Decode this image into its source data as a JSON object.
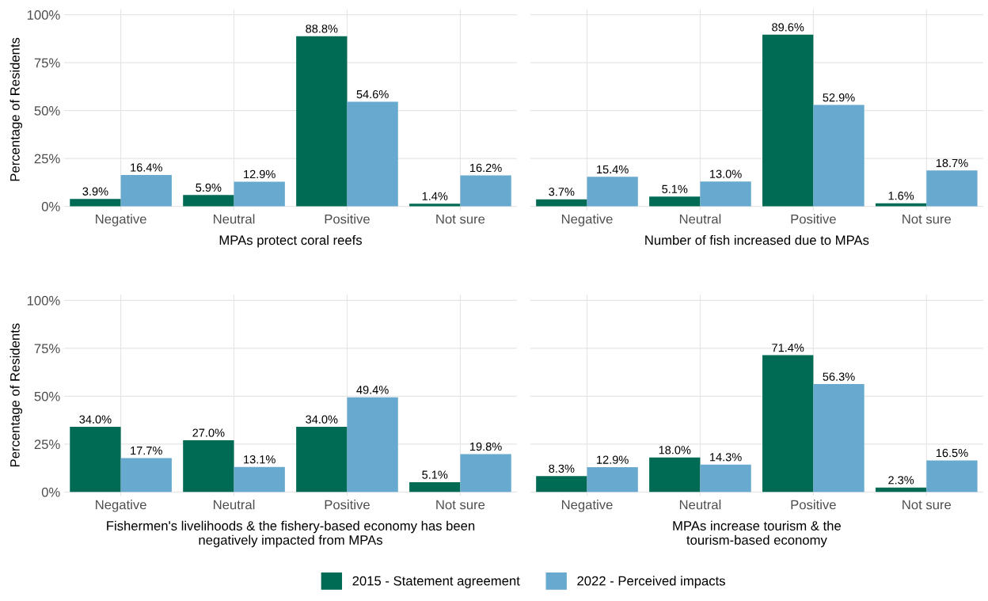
{
  "chart_data": [
    {
      "type": "bar",
      "xlabel": "MPAs protect coral reefs",
      "ylabel": "Percentage of Residents",
      "categories": [
        "Negative",
        "Neutral",
        "Positive",
        "Not sure"
      ],
      "ylim": [
        -2,
        103
      ],
      "yticks": [
        {
          "value": 0,
          "label": "0%"
        },
        {
          "value": 25,
          "label": "25%"
        },
        {
          "value": 50,
          "label": "50%"
        },
        {
          "value": 75,
          "label": "75%"
        },
        {
          "value": 100,
          "label": "100%"
        }
      ],
      "grid": true,
      "legend": "bottom",
      "series": [
        {
          "name": "2015 - Statement agreement",
          "color": "#006b54",
          "values": [
            3.9,
            5.9,
            88.8,
            1.4
          ],
          "value_labels": [
            "3.9%",
            "5.9%",
            "88.8%",
            "1.4%"
          ]
        },
        {
          "name": "2022 - Perceived impacts",
          "color": "#67a9cf",
          "values": [
            16.4,
            12.9,
            54.6,
            16.2
          ],
          "value_labels": [
            "16.4%",
            "12.9%",
            "54.6%",
            "16.2%"
          ]
        }
      ]
    },
    {
      "type": "bar",
      "xlabel": "Number of fish increased due to MPAs",
      "categories": [
        "Negative",
        "Neutral",
        "Positive",
        "Not sure"
      ],
      "ylim": [
        -2,
        103
      ],
      "tick_labels": "x",
      "grid": true,
      "legend": "bottom",
      "series": [
        {
          "name": "2015 - Statement agreement",
          "color": "#006b54",
          "values": [
            3.7,
            5.1,
            89.6,
            1.6
          ],
          "value_labels": [
            "3.7%",
            "5.1%",
            "89.6%",
            "1.6%"
          ]
        },
        {
          "name": "2022 - Perceived impacts",
          "color": "#67a9cf",
          "values": [
            15.4,
            13.0,
            52.9,
            18.7
          ],
          "value_labels": [
            "15.4%",
            "13.0%",
            "52.9%",
            "18.7%"
          ]
        }
      ]
    },
    {
      "type": "bar",
      "xlabel": "Fishermen's livelihoods & the fishery-based economy has been\nnegatively impacted from MPAs",
      "ylabel": "Percentage of Residents",
      "categories": [
        "Negative",
        "Neutral",
        "Positive",
        "Not sure"
      ],
      "ylim": [
        -2,
        103
      ],
      "yticks": [
        {
          "value": 0,
          "label": "0%"
        },
        {
          "value": 25,
          "label": "25%"
        },
        {
          "value": 50,
          "label": "50%"
        },
        {
          "value": 75,
          "label": "75%"
        },
        {
          "value": 100,
          "label": "100%"
        }
      ],
      "grid": true,
      "legend": "bottom",
      "series": [
        {
          "name": "2015 - Statement agreement",
          "color": "#006b54",
          "values": [
            34.0,
            27.0,
            34.0,
            5.1
          ],
          "value_labels": [
            "34.0%",
            "27.0%",
            "34.0%",
            "5.1%"
          ]
        },
        {
          "name": "2022 - Perceived impacts",
          "color": "#67a9cf",
          "values": [
            17.7,
            13.1,
            49.4,
            19.8
          ],
          "value_labels": [
            "17.7%",
            "13.1%",
            "49.4%",
            "19.8%"
          ]
        }
      ]
    },
    {
      "type": "bar",
      "xlabel": "MPAs increase tourism & the\ntourism-based economy",
      "categories": [
        "Negative",
        "Neutral",
        "Positive",
        "Not sure"
      ],
      "ylim": [
        -2,
        103
      ],
      "tick_labels": "x",
      "grid": true,
      "legend": "bottom",
      "series": [
        {
          "name": "2015 - Statement agreement",
          "color": "#006b54",
          "values": [
            8.3,
            18.0,
            71.4,
            2.3
          ],
          "value_labels": [
            "8.3%",
            "18.0%",
            "71.4%",
            "2.3%"
          ]
        },
        {
          "name": "2022 - Perceived impacts",
          "color": "#67a9cf",
          "values": [
            12.9,
            14.3,
            56.3,
            16.5
          ],
          "value_labels": [
            "12.9%",
            "14.3%",
            "56.3%",
            "16.5%"
          ]
        }
      ]
    }
  ]
}
